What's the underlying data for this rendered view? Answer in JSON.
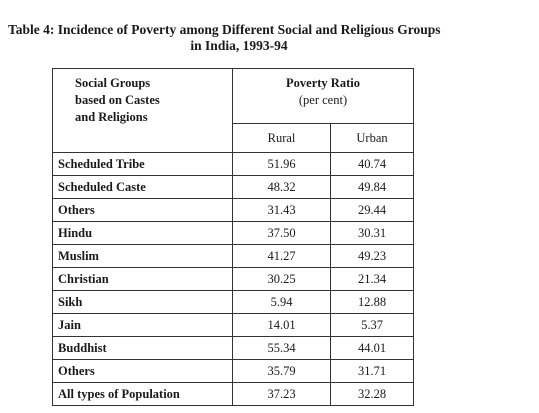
{
  "title": {
    "line1": "Table 4: Incidence of Poverty among Different Social and Religious Groups",
    "line2": "in India, 1993-94"
  },
  "header": {
    "group_label": "Social Groups based on Castes and Religions",
    "group_label_lines": [
      "Social Groups",
      "based on Castes",
      "and Religions"
    ],
    "poverty_label": "Poverty Ratio",
    "poverty_unit": "(per cent)",
    "rural": "Rural",
    "urban": "Urban"
  },
  "rows": [
    {
      "group": "Scheduled Tribe",
      "rural": "51.96",
      "urban": "40.74"
    },
    {
      "group": "Scheduled Caste",
      "rural": "48.32",
      "urban": "49.84"
    },
    {
      "group": "Others",
      "rural": "31.43",
      "urban": "29.44"
    },
    {
      "group": "Hindu",
      "rural": "37.50",
      "urban": "30.31"
    },
    {
      "group": "Muslim",
      "rural": "41.27",
      "urban": "49.23"
    },
    {
      "group": "Christian",
      "rural": "30.25",
      "urban": "21.34"
    },
    {
      "group": "Sikh",
      "rural": "5.94",
      "urban": "12.88"
    },
    {
      "group": "Jain",
      "rural": "14.01",
      "urban": "5.37"
    },
    {
      "group": "Buddhist",
      "rural": "55.34",
      "urban": "44.01"
    },
    {
      "group": "Others",
      "rural": "35.79",
      "urban": "31.71"
    },
    {
      "group": "All types of Population",
      "rural": "37.23",
      "urban": "32.28"
    }
  ]
}
